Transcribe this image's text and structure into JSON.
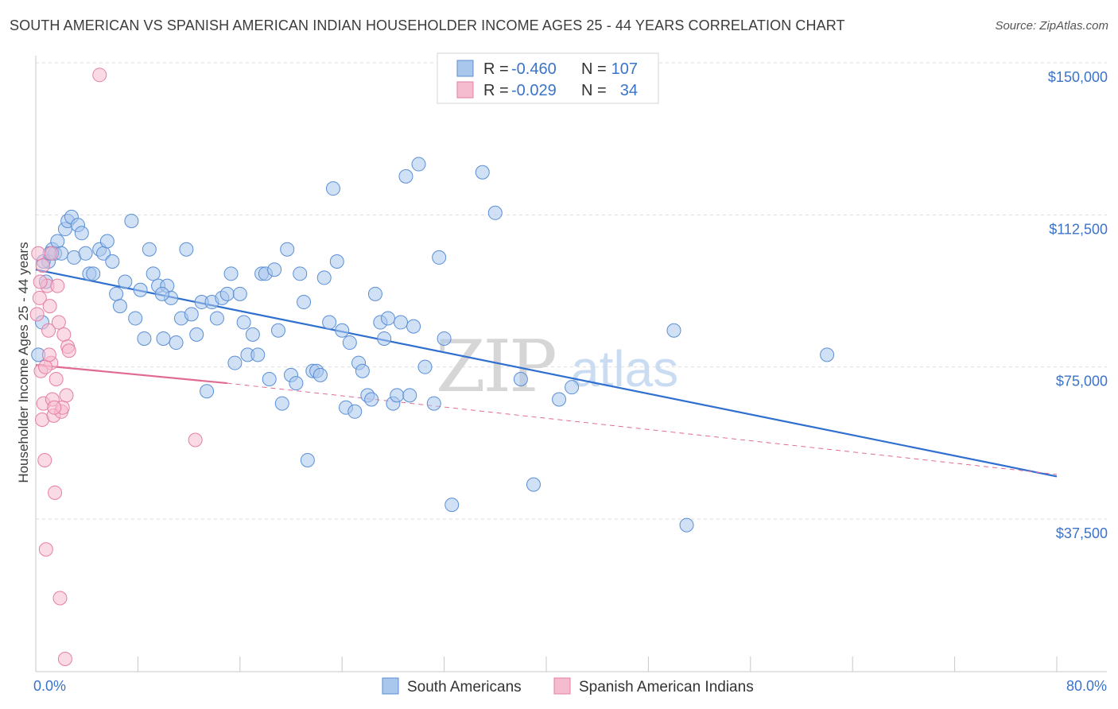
{
  "title": "SOUTH AMERICAN VS SPANISH AMERICAN INDIAN HOUSEHOLDER INCOME AGES 25 - 44 YEARS CORRELATION CHART",
  "source": "Source: ZipAtlas.com",
  "watermark": {
    "part1": "ZIP",
    "part2": "atlas"
  },
  "legend": {
    "rows": [
      {
        "r_label": "R =",
        "r_value": "-0.460",
        "n_label": "N =",
        "n_value": "107"
      },
      {
        "r_label": "R =",
        "r_value": "-0.029",
        "n_label": "N =",
        "n_value": "34"
      }
    ]
  },
  "chart_data": {
    "type": "scatter",
    "title": "SOUTH AMERICAN VS SPANISH AMERICAN INDIAN HOUSEHOLDER INCOME AGES 25 - 44 YEARS CORRELATION CHART",
    "xlabel": "",
    "ylabel": "Householder Income Ages 25 - 44 years",
    "xlim": [
      0,
      80
    ],
    "ylim": [
      0,
      155000
    ],
    "x_tick_labels": [
      "0.0%",
      "80.0%"
    ],
    "y_ticks": [
      37500,
      75000,
      112500,
      150000
    ],
    "y_tick_labels": [
      "$37,500",
      "$75,000",
      "$112,500",
      "$150,000"
    ],
    "grid": true,
    "legend_position": "top-center",
    "series": [
      {
        "name": "South Americans",
        "color": "#a9c6ec",
        "edge": "#5a8fd6",
        "trend": {
          "x": [
            0,
            80
          ],
          "y": [
            99000,
            48000
          ],
          "color": "#2f6fcf"
        },
        "points": [
          [
            0.2,
            78000
          ],
          [
            0.5,
            86000
          ],
          [
            0.8,
            96000
          ],
          [
            1.0,
            101000
          ],
          [
            1.3,
            104000
          ],
          [
            1.5,
            103000
          ],
          [
            1.7,
            106000
          ],
          [
            2.0,
            103000
          ],
          [
            2.3,
            109000
          ],
          [
            2.5,
            111000
          ],
          [
            2.8,
            112000
          ],
          [
            3.0,
            102000
          ],
          [
            3.3,
            110000
          ],
          [
            3.6,
            108000
          ],
          [
            3.9,
            103000
          ],
          [
            4.2,
            98000
          ],
          [
            4.5,
            98000
          ],
          [
            5.0,
            104000
          ],
          [
            5.3,
            103000
          ],
          [
            5.6,
            106000
          ],
          [
            6.0,
            101000
          ],
          [
            6.3,
            93000
          ],
          [
            6.6,
            90000
          ],
          [
            7.0,
            96000
          ],
          [
            7.5,
            111000
          ],
          [
            7.8,
            87000
          ],
          [
            8.2,
            94000
          ],
          [
            8.5,
            82000
          ],
          [
            8.9,
            104000
          ],
          [
            9.2,
            98000
          ],
          [
            9.6,
            95000
          ],
          [
            10.0,
            82000
          ],
          [
            10.3,
            95000
          ],
          [
            10.6,
            92000
          ],
          [
            11.0,
            81000
          ],
          [
            11.4,
            87000
          ],
          [
            11.8,
            104000
          ],
          [
            12.2,
            88000
          ],
          [
            12.6,
            83000
          ],
          [
            13.0,
            91000
          ],
          [
            13.4,
            69000
          ],
          [
            13.8,
            91000
          ],
          [
            14.2,
            87000
          ],
          [
            14.6,
            92000
          ],
          [
            15.0,
            93000
          ],
          [
            15.3,
            98000
          ],
          [
            15.6,
            76000
          ],
          [
            16.0,
            93000
          ],
          [
            16.3,
            86000
          ],
          [
            16.6,
            78000
          ],
          [
            17.0,
            83000
          ],
          [
            17.4,
            78000
          ],
          [
            17.7,
            98000
          ],
          [
            18.0,
            98000
          ],
          [
            18.3,
            72000
          ],
          [
            18.7,
            99000
          ],
          [
            19.0,
            84000
          ],
          [
            19.3,
            66000
          ],
          [
            19.7,
            104000
          ],
          [
            20.0,
            73000
          ],
          [
            20.4,
            71000
          ],
          [
            20.7,
            98000
          ],
          [
            21.0,
            91000
          ],
          [
            21.3,
            52000
          ],
          [
            21.7,
            74000
          ],
          [
            22.0,
            74000
          ],
          [
            22.3,
            73000
          ],
          [
            22.6,
            97000
          ],
          [
            23.0,
            86000
          ],
          [
            23.3,
            119000
          ],
          [
            23.6,
            101000
          ],
          [
            24.0,
            84000
          ],
          [
            24.3,
            65000
          ],
          [
            24.6,
            81000
          ],
          [
            25.0,
            64000
          ],
          [
            25.3,
            76000
          ],
          [
            25.6,
            74000
          ],
          [
            26.0,
            68000
          ],
          [
            26.3,
            67000
          ],
          [
            26.6,
            93000
          ],
          [
            27.0,
            86000
          ],
          [
            27.3,
            82000
          ],
          [
            27.6,
            87000
          ],
          [
            28.0,
            66000
          ],
          [
            28.3,
            68000
          ],
          [
            28.6,
            86000
          ],
          [
            29.0,
            122000
          ],
          [
            29.3,
            68000
          ],
          [
            29.6,
            85000
          ],
          [
            30.0,
            125000
          ],
          [
            30.5,
            75000
          ],
          [
            31.2,
            66000
          ],
          [
            31.6,
            102000
          ],
          [
            32.0,
            82000
          ],
          [
            32.6,
            41000
          ],
          [
            35.0,
            123000
          ],
          [
            36.0,
            113000
          ],
          [
            38.0,
            72000
          ],
          [
            39.0,
            46000
          ],
          [
            41.0,
            67000
          ],
          [
            42.0,
            70000
          ],
          [
            50.0,
            84000
          ],
          [
            51.0,
            36000
          ],
          [
            62.0,
            78000
          ],
          [
            0.6,
            101000
          ],
          [
            1.1,
            103000
          ],
          [
            9.9,
            93000
          ]
        ]
      },
      {
        "name": "Spanish American Indians",
        "color": "#f5bcd0",
        "edge": "#e57fa3",
        "trend": {
          "x": [
            0,
            15
          ],
          "y": [
            75500,
            71000
          ],
          "ext_x": [
            15,
            80
          ],
          "ext_y": [
            71000,
            48500
          ],
          "color": "#e06a93"
        },
        "points": [
          [
            0.1,
            88000
          ],
          [
            0.2,
            103000
          ],
          [
            0.3,
            92000
          ],
          [
            0.4,
            74000
          ],
          [
            0.5,
            62000
          ],
          [
            0.6,
            66000
          ],
          [
            0.7,
            52000
          ],
          [
            0.8,
            30000
          ],
          [
            0.9,
            95000
          ],
          [
            1.0,
            84000
          ],
          [
            1.1,
            90000
          ],
          [
            1.2,
            76000
          ],
          [
            1.3,
            67000
          ],
          [
            1.4,
            63000
          ],
          [
            1.5,
            44000
          ],
          [
            1.6,
            72000
          ],
          [
            1.7,
            95000
          ],
          [
            1.8,
            86000
          ],
          [
            1.9,
            18000
          ],
          [
            2.0,
            64000
          ],
          [
            2.1,
            65000
          ],
          [
            2.2,
            83000
          ],
          [
            2.3,
            3000
          ],
          [
            2.4,
            68000
          ],
          [
            2.5,
            80000
          ],
          [
            2.6,
            79000
          ],
          [
            0.35,
            96000
          ],
          [
            0.55,
            100000
          ],
          [
            0.75,
            75000
          ],
          [
            1.05,
            78000
          ],
          [
            1.25,
            103000
          ],
          [
            1.45,
            65000
          ],
          [
            5.0,
            147000
          ],
          [
            12.5,
            57000
          ]
        ]
      }
    ]
  },
  "bottom_legend": {
    "items": [
      "South Americans",
      "Spanish American Indians"
    ]
  },
  "colors": {
    "blue_text": "#3b73c8",
    "blue_fill": "#a9c6ec",
    "pink_fill": "#f5bcd0",
    "grid": "#dedede"
  }
}
